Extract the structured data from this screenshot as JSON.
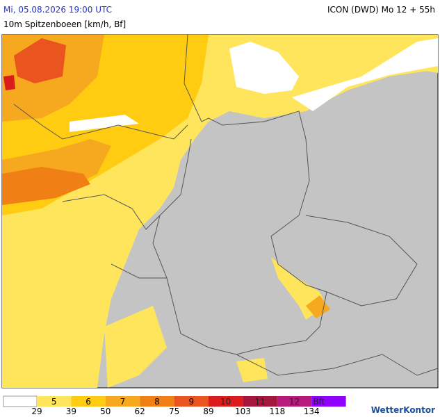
{
  "header": {
    "valid_time": "Mi, 05.08.2026 19:00 UTC",
    "model": "ICON (DWD) Mo 12 + 55h",
    "parameter": "10m Spitzenboeen [km/h, Bf]"
  },
  "legend": {
    "bins": [
      {
        "label": "5",
        "color": "#ffe55c"
      },
      {
        "label": "6",
        "color": "#ffcc11"
      },
      {
        "label": "7",
        "color": "#f6a81e"
      },
      {
        "label": "8",
        "color": "#f07f16"
      },
      {
        "label": "9",
        "color": "#e9541f"
      },
      {
        "label": "10",
        "color": "#dc1c1c"
      },
      {
        "label": "11",
        "color": "#a5163c"
      },
      {
        "label": "12",
        "color": "#b81a7c"
      },
      {
        "label": "Bft",
        "color": "#8e00ff"
      }
    ],
    "thresholds": [
      29,
      39,
      50,
      62,
      75,
      89,
      103,
      118,
      134
    ]
  },
  "brand": "WetterKontor"
}
